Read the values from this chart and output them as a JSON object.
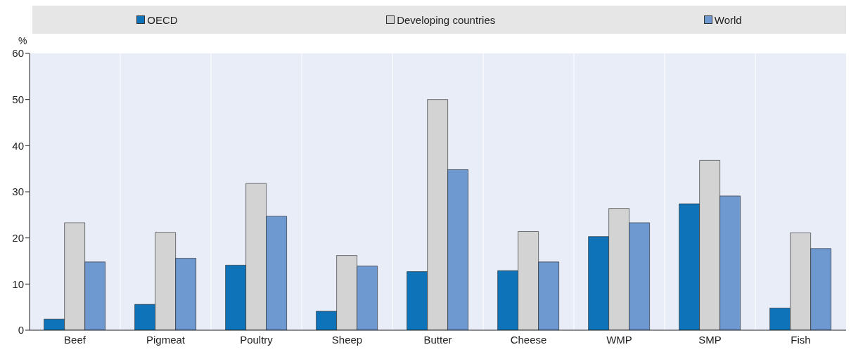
{
  "chart_data": {
    "type": "bar",
    "ylabel": "%",
    "categories": [
      "Beef",
      "Pigmeat",
      "Poultry",
      "Sheep",
      "Butter",
      "Cheese",
      "WMP",
      "SMP",
      "Fish"
    ],
    "series": [
      {
        "name": "OECD",
        "color": "#0f73b9",
        "values": [
          2.4,
          5.6,
          14.1,
          4.1,
          12.7,
          12.9,
          20.3,
          27.4,
          4.8
        ]
      },
      {
        "name": "Developing countries",
        "color": "#d3d3d3",
        "values": [
          23.3,
          21.2,
          31.8,
          16.2,
          50,
          21.4,
          26.4,
          36.8,
          21.1
        ]
      },
      {
        "name": "World",
        "color": "#6e98d0",
        "values": [
          14.8,
          15.6,
          24.7,
          13.9,
          34.8,
          14.8,
          23.3,
          29.1,
          17.7
        ]
      }
    ],
    "ylim": [
      0,
      60
    ],
    "yticks": [
      0,
      10,
      20,
      30,
      40,
      50,
      60
    ],
    "grid": "x",
    "legend": "top"
  }
}
